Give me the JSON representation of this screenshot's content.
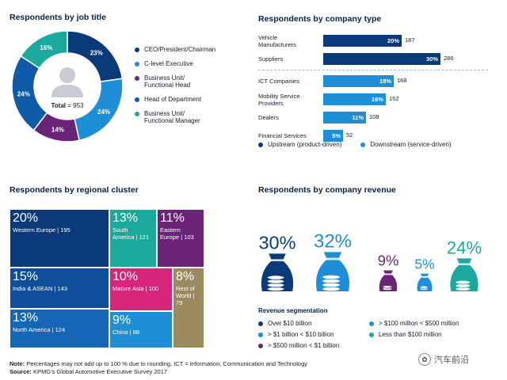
{
  "chart_data": [
    {
      "type": "pie",
      "title": "Respondents by job title",
      "center_label": "Total",
      "total": 953,
      "slices": [
        {
          "name": "CEO/President/Chairman",
          "value": 23,
          "label": "23%",
          "color": "#0b3a7a"
        },
        {
          "name": "C-level Executive",
          "value": 24,
          "label": "24%",
          "color": "#1e8fd6"
        },
        {
          "name": "Business Unit/\nFunctional Head",
          "value": 14,
          "label": "14%",
          "color": "#6b2378"
        },
        {
          "name": "Head of Department",
          "value": 24,
          "label": "24%",
          "color": "#0f5ba8"
        },
        {
          "name": "Business Unit/\nFunctional Manager",
          "value": 16,
          "label": "16%",
          "color": "#1aa99b"
        }
      ]
    },
    {
      "type": "bar",
      "title": "Respondents by company type",
      "rows": [
        {
          "category": "Vehicle\nManufacturers",
          "pct": 20,
          "count": 187,
          "group": "upstream"
        },
        {
          "category": "Suppliers",
          "pct": 30,
          "count": 286,
          "group": "upstream"
        },
        {
          "category": "ICT Companies",
          "pct": 18,
          "count": 168,
          "group": "downstream"
        },
        {
          "category": "Mobility Service\nProviders",
          "pct": 16,
          "count": 152,
          "group": "downstream"
        },
        {
          "category": "Dealers",
          "pct": 11,
          "count": 108,
          "group": "downstream"
        },
        {
          "category": "Financial Services",
          "pct": 5,
          "count": 52,
          "group": "downstream"
        }
      ],
      "legend": [
        {
          "key": "upstream",
          "label": "Upstream (product-driven)",
          "color": "#0b3a7a"
        },
        {
          "key": "downstream",
          "label": "Downstream (service-driven)",
          "color": "#1e8fd6"
        }
      ],
      "xlim": [
        0,
        30
      ]
    },
    {
      "type": "treemap",
      "title": "Respondents by regional cluster",
      "cells": [
        {
          "name": "Western Europe",
          "pct": "20%",
          "count": 195,
          "color": "#0b3a7a"
        },
        {
          "name": "South\nAmerica",
          "pct": "13%",
          "count": 121,
          "color": "#1aa99b"
        },
        {
          "name": "Eastern\nEurope",
          "pct": "11%",
          "count": 103,
          "color": "#6b2378"
        },
        {
          "name": "India & ASEAN",
          "pct": "15%",
          "count": 143,
          "color": "#0f4e9a"
        },
        {
          "name": "Mature Asia",
          "pct": "10%",
          "count": 100,
          "color": "#d6257a"
        },
        {
          "name": "Rest of\nWorld",
          "pct": "8%",
          "count": 79,
          "color": "#9b8a5e"
        },
        {
          "name": "North America",
          "pct": "13%",
          "count": 124,
          "color": "#1666b8"
        },
        {
          "name": "China",
          "pct": "9%",
          "count": 88,
          "color": "#1e8fd6"
        }
      ]
    },
    {
      "type": "bar",
      "title": "Respondents by company revenue",
      "subtitle": "Revenue segmentation",
      "bags": [
        {
          "segment": "Over $10 billion",
          "value": 30,
          "label": "30%",
          "color": "#0b3a7a"
        },
        {
          "segment": "> $1 billion < $10 billion",
          "value": 32,
          "label": "32%",
          "color": "#1e8fd6"
        },
        {
          "segment": "> $500 million < $1 billion",
          "value": 9,
          "label": "9%",
          "color": "#6b2378"
        },
        {
          "segment": "> $100 million < $500 million",
          "value": 5,
          "label": "5%",
          "color": "#1e8fd6"
        },
        {
          "segment": "Less than $100 million",
          "value": 24,
          "label": "24%",
          "color": "#1aa99b"
        }
      ],
      "legend": [
        {
          "label": "Over $10 billion",
          "color": "#0b3a7a"
        },
        {
          "label": "> $100 million < $500 million",
          "color": "#1e8fd6"
        },
        {
          "label": "> $1 billion < $10 billion",
          "color": "#1e8fd6"
        },
        {
          "label": "Less than $100 million",
          "color": "#1aa99b"
        },
        {
          "label": "> $500 million < $1 billion",
          "color": "#6b2378"
        }
      ]
    }
  ],
  "footer": {
    "note_label": "Note:",
    "note_text": "Percentages may not add up to 100 % due to rounding, ICT = Information, Communication and Technology",
    "source_label": "Source:",
    "source_text": "KPMG's Global Automotive Executive Survey 2017"
  },
  "watermark": "汽车前沿"
}
